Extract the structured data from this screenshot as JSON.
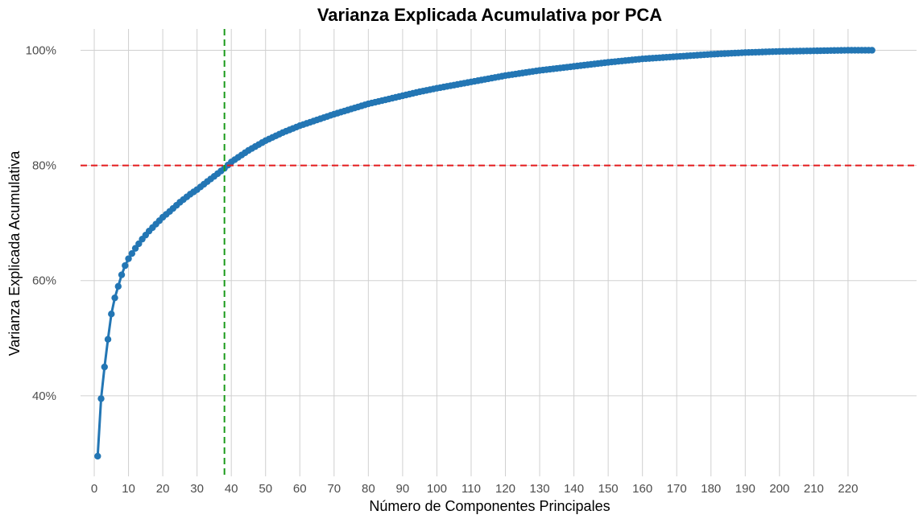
{
  "chart_data": {
    "type": "line",
    "title": "Varianza Explicada Acumulativa por PCA",
    "xlabel": "Número de Componentes Principales",
    "ylabel": "Varianza Explicada Acumulativa",
    "xlim": [
      -4,
      240
    ],
    "ylim": [
      0.26,
      1.037
    ],
    "x_ticks": [
      0,
      10,
      20,
      30,
      40,
      50,
      60,
      70,
      80,
      90,
      100,
      110,
      120,
      130,
      140,
      150,
      160,
      170,
      180,
      190,
      200,
      210,
      220
    ],
    "x_tick_labels": [
      "0",
      "10",
      "20",
      "30",
      "40",
      "50",
      "60",
      "70",
      "80",
      "90",
      "100",
      "110",
      "120",
      "130",
      "140",
      "150",
      "160",
      "170",
      "180",
      "190",
      "200",
      "210",
      "220"
    ],
    "y_ticks": [
      0.4,
      0.6,
      0.8,
      1.0
    ],
    "y_tick_labels": [
      "40%",
      "60%",
      "80%",
      "100%"
    ],
    "grid": true,
    "legend": "none",
    "colors": {
      "series": "#2376b4",
      "hline": "#e41a1c",
      "vline": "#1a9a1a",
      "grid": "#d0d0d0"
    },
    "reference_lines": [
      {
        "orientation": "horizontal",
        "value": 0.8,
        "style": "dashed",
        "color": "#e41a1c"
      },
      {
        "orientation": "vertical",
        "value": 38,
        "style": "dashed",
        "color": "#1a9a1a"
      }
    ],
    "series": [
      {
        "x": [
          1,
          2,
          3,
          4,
          5,
          6,
          7,
          8,
          9,
          10,
          12,
          14,
          16,
          18,
          20,
          22,
          25,
          28,
          30,
          33,
          35,
          38,
          40,
          45,
          50,
          55,
          60,
          65,
          70,
          75,
          80,
          85,
          90,
          95,
          100,
          110,
          120,
          130,
          140,
          150,
          160,
          170,
          180,
          190,
          200,
          210,
          220,
          227
        ],
        "values": [
          0.295,
          0.395,
          0.45,
          0.498,
          0.542,
          0.57,
          0.59,
          0.61,
          0.626,
          0.638,
          0.656,
          0.672,
          0.686,
          0.698,
          0.71,
          0.72,
          0.736,
          0.75,
          0.758,
          0.772,
          0.781,
          0.795,
          0.806,
          0.826,
          0.843,
          0.857,
          0.869,
          0.879,
          0.889,
          0.898,
          0.907,
          0.914,
          0.921,
          0.928,
          0.934,
          0.945,
          0.956,
          0.965,
          0.972,
          0.979,
          0.985,
          0.989,
          0.993,
          0.996,
          0.998,
          0.999,
          1.0,
          1.0
        ]
      }
    ]
  }
}
